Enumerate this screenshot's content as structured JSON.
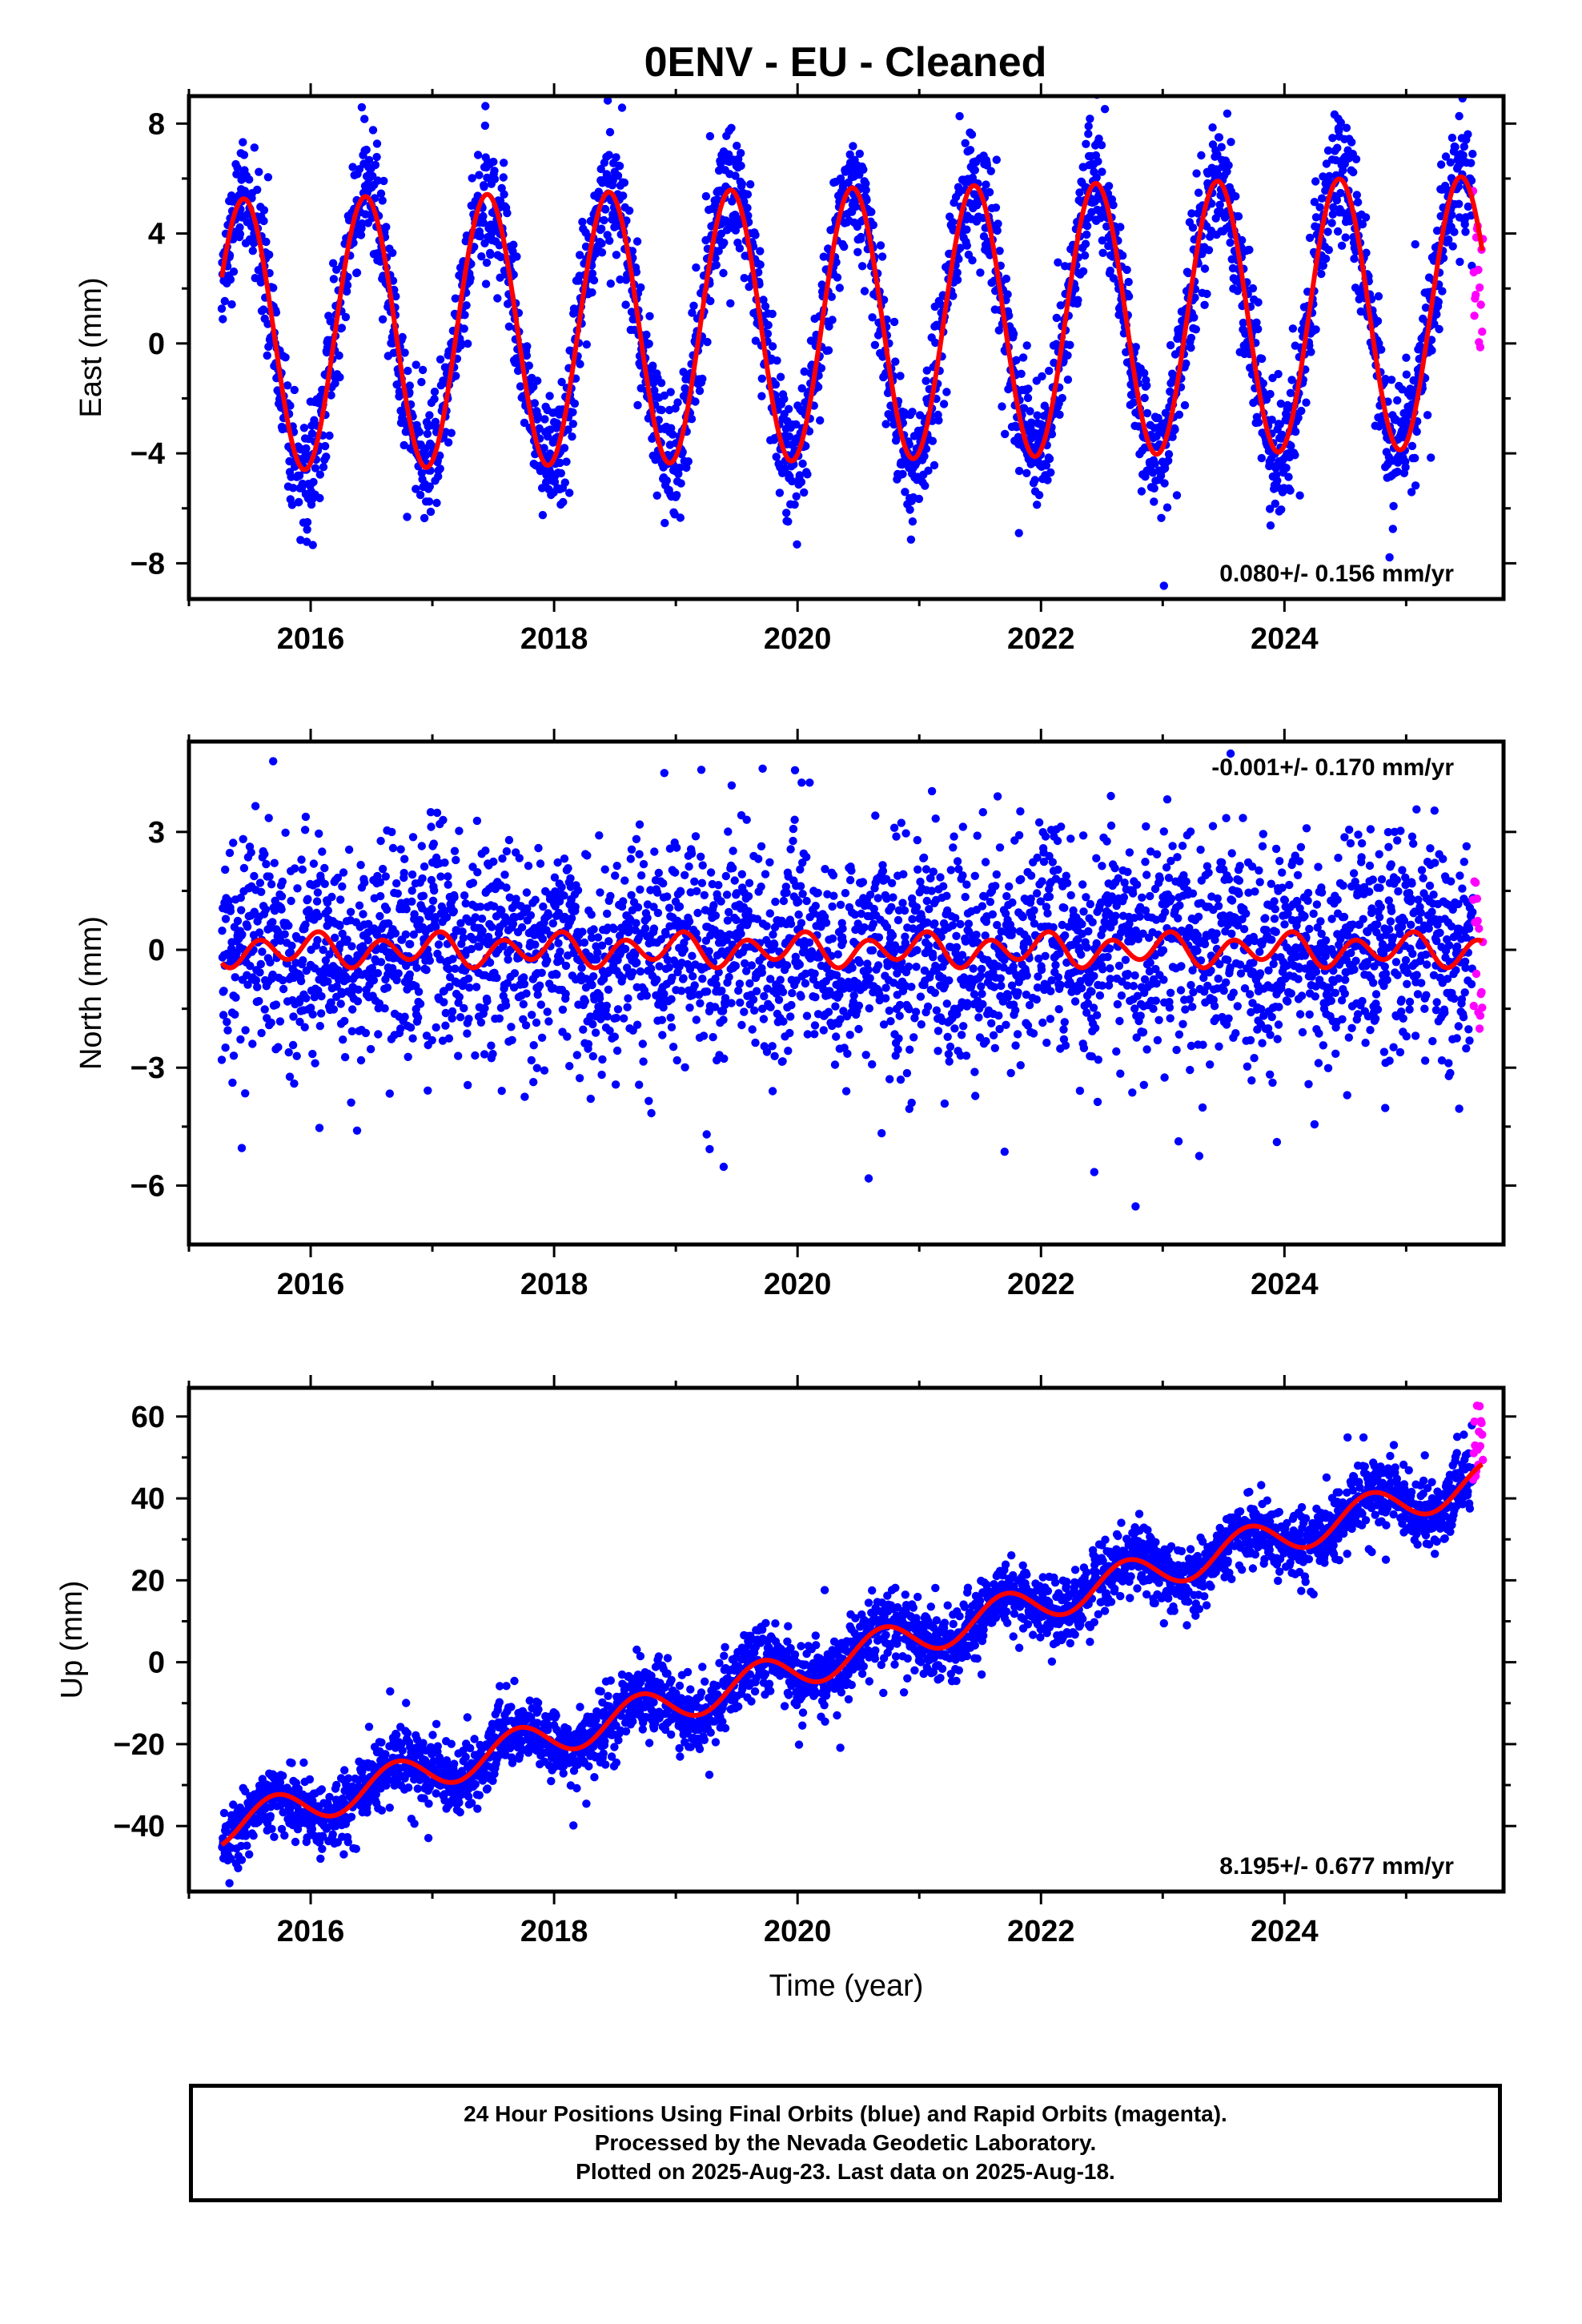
{
  "title": "0ENV  - EU - Cleaned",
  "footer": {
    "line1": "24 Hour Positions Using Final Orbits (blue) and Rapid Orbits (magenta).",
    "line2": "Processed by the Nevada Geodetic Laboratory.",
    "line3": "Plotted on 2025-Aug-23. Last data on 2025-Aug-18."
  },
  "colors": {
    "final_orbits": "#0000ff",
    "rapid_orbits": "#ff00ff",
    "model_fit": "#ff0000",
    "frame": "#000000"
  },
  "chart_data": [
    {
      "type": "scatter",
      "xlabel": "",
      "ylabel": "East (mm)",
      "xlim": [
        2015.0,
        2025.8
      ],
      "ylim": [
        -9.3,
        9.0
      ],
      "xticks": [
        2016,
        2018,
        2020,
        2022,
        2024
      ],
      "yticks": [
        -8,
        -4,
        0,
        4,
        8
      ],
      "yticklabels": [
        "−8",
        "−4",
        "0",
        "4",
        "8"
      ],
      "rate_label": "0.080+/- 0.156 mm/yr",
      "rate_position": "bottom-right",
      "grid": false,
      "series": [
        {
          "color": "#0000ff",
          "data_start": 2015.27,
          "data_end": 2025.55,
          "model": "sinusoid",
          "annual_amplitude": 4.9,
          "scatter_std": 1.1
        },
        {
          "color": "#ff00ff",
          "data_start": 2025.55,
          "data_end": 2025.63,
          "y_range": [
            -0.2,
            5.7
          ]
        }
      ],
      "fit": {
        "color": "#ff0000",
        "rate_mm_yr": 0.08,
        "annual_amplitude": 4.95,
        "offset": 0.3
      }
    },
    {
      "type": "scatter",
      "xlabel": "",
      "ylabel": "North (mm)",
      "xlim": [
        2015.0,
        2025.8
      ],
      "ylim": [
        -7.5,
        5.3
      ],
      "xticks": [
        2016,
        2018,
        2020,
        2022,
        2024
      ],
      "yticks": [
        -6,
        -3,
        0,
        3
      ],
      "yticklabels": [
        "−6",
        "−3",
        "0",
        "3"
      ],
      "rate_label": "-0.001+/- 0.170 mm/yr",
      "rate_position": "top-right",
      "grid": false,
      "series": [
        {
          "color": "#0000ff",
          "data_start": 2015.27,
          "data_end": 2025.55,
          "model": "semiannual",
          "scatter_std": 1.3
        },
        {
          "color": "#ff00ff",
          "data_start": 2025.55,
          "data_end": 2025.63,
          "y_range": [
            -2.1,
            1.8
          ]
        }
      ],
      "fit": {
        "color": "#ff0000",
        "rate_mm_yr": -0.001,
        "semiannual_amplitude": 0.35
      }
    },
    {
      "type": "scatter",
      "xlabel": "Time (year)",
      "ylabel": "Up (mm)",
      "xlim": [
        2015.0,
        2025.8
      ],
      "ylim": [
        -56,
        67
      ],
      "xticks": [
        2016,
        2018,
        2020,
        2022,
        2024
      ],
      "yticks": [
        -40,
        -20,
        0,
        20,
        40,
        60
      ],
      "yticklabels": [
        "−40",
        "−20",
        "0",
        "20",
        "40",
        "60"
      ],
      "rate_label": "8.195+/- 0.677 mm/yr",
      "rate_position": "bottom-right",
      "grid": false,
      "series": [
        {
          "color": "#0000ff",
          "data_start": 2015.27,
          "data_end": 2025.55,
          "model": "trend+annual",
          "scatter_std": 4.0
        },
        {
          "color": "#ff00ff",
          "data_start": 2025.55,
          "data_end": 2025.63,
          "y_range": [
            43,
            64
          ]
        }
      ],
      "fit": {
        "color": "#ff0000",
        "rate_mm_yr": 8.195,
        "annual_amplitude": 4.5,
        "start_value": -45
      }
    }
  ]
}
